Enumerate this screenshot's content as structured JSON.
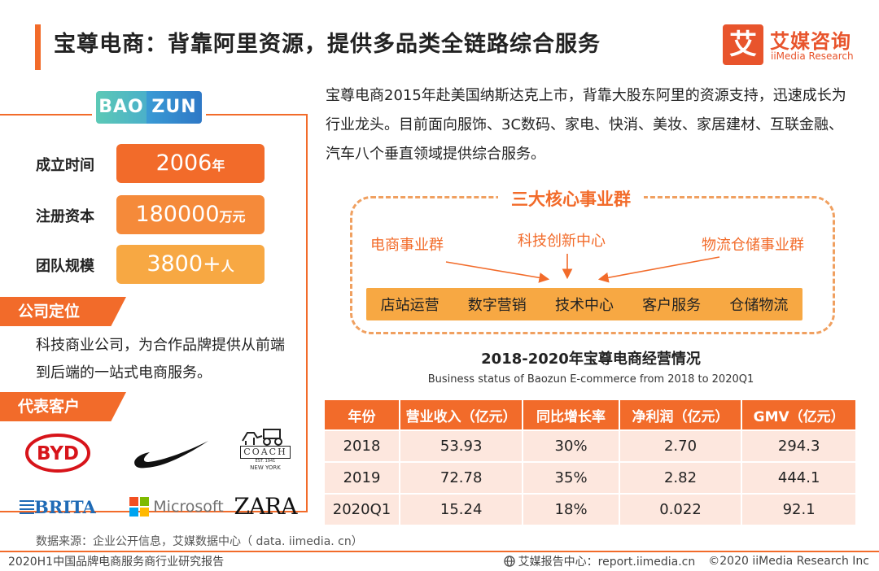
{
  "header": {
    "title": "宝尊电商：背靠阿里资源，提供多品类全链路综合服务",
    "brand_mark": "艾",
    "brand_name_cn": "艾媒咨询",
    "brand_name_en": "iiMedia Research"
  },
  "company": {
    "logo_left": "BAO",
    "logo_right": "ZUN",
    "facts": [
      {
        "label": "成立时间",
        "value": "2006",
        "unit": "年",
        "color": "#f26b2a"
      },
      {
        "label": "注册资本",
        "value": "180000",
        "unit": "万元",
        "color": "#f58a3a"
      },
      {
        "label": "团队规模",
        "value": "3800+",
        "unit": "人",
        "color": "#f7a843"
      }
    ],
    "positioning_tag": "公司定位",
    "positioning_text": "科技商业公司，为合作品牌提供从前端到后端的一站式电商服务。",
    "clients_tag": "代表客户",
    "clients": {
      "byd": "BYD",
      "coach": "COACH",
      "coach_est": "EST. 1941",
      "coach_city": "NEW YORK",
      "brita": "BRITA",
      "microsoft": "Microsoft",
      "zara": "ZARA"
    }
  },
  "intro": "宝尊电商2015年赴美国纳斯达克上市，背靠大股东阿里的资源支持，迅速成长为行业龙头。目前面向服饰、3C数码、家电、快消、美妆、家居建材、互联金融、汽车八个垂直领域提供综合服务。",
  "core": {
    "title": "三大核心事业群",
    "groups": [
      "电商事业群",
      "科技创新中心",
      "物流仓储事业群"
    ],
    "services": [
      "店站运营",
      "数字营销",
      "技术中心",
      "客户服务",
      "仓储物流"
    ]
  },
  "table": {
    "title": "2018-2020年宝尊电商经营情况",
    "subtitle": "Business status of Baozun E-commerce from 2018 to 2020Q1",
    "headers": [
      "年份",
      "营业收入（亿元）",
      "同比增长率",
      "净利润（亿元）",
      "GMV（亿元）"
    ],
    "rows": [
      [
        "2018",
        "53.93",
        "30%",
        "2.70",
        "294.3"
      ],
      [
        "2019",
        "72.78",
        "35%",
        "2.82",
        "444.1"
      ],
      [
        "2020Q1",
        "15.24",
        "18%",
        "0.022",
        "92.1"
      ]
    ]
  },
  "footer": {
    "source": "数据来源：企业公开信息，艾媒数据中心（ data. iimedia. cn）",
    "report_name": "2020H1中国品牌电商服务商行业研究报告",
    "report_center": "艾媒报告中心：report.iimedia.cn",
    "copyright": "©2020  iiMedia Research  Inc"
  }
}
